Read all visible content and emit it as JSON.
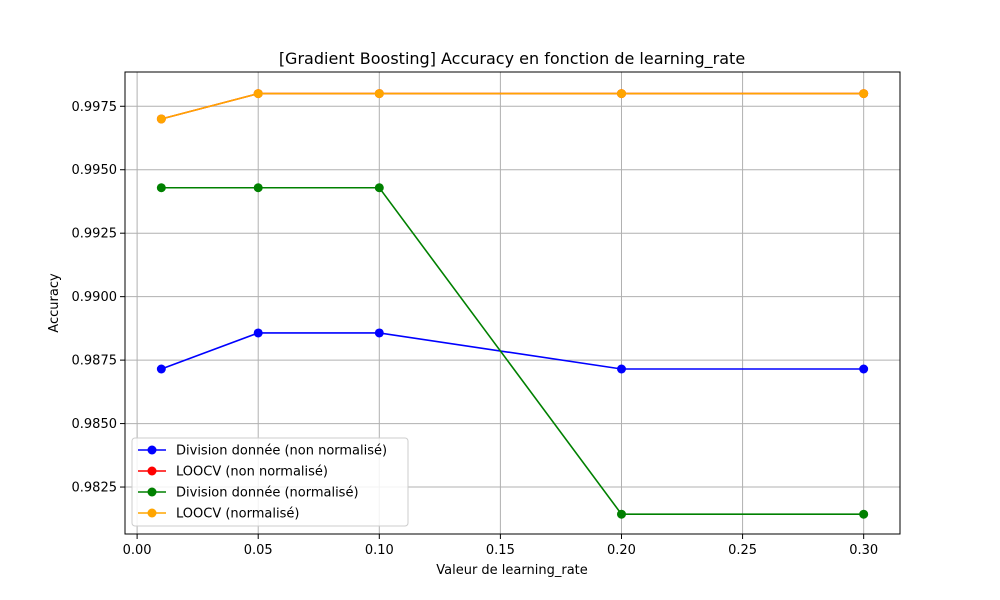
{
  "chart_data": {
    "type": "line",
    "title": "[Gradient Boosting] Accuracy en fonction de learning_rate",
    "xlabel": "Valeur de learning_rate",
    "ylabel": "Accuracy",
    "xlim": [
      -0.005,
      0.315
    ],
    "ylim": [
      0.98065,
      0.99885
    ],
    "xticks": [
      0.0,
      0.05,
      0.1,
      0.15,
      0.2,
      0.25,
      0.3
    ],
    "xtick_labels": [
      "0.00",
      "0.05",
      "0.10",
      "0.15",
      "0.20",
      "0.25",
      "0.30"
    ],
    "yticks": [
      0.9825,
      0.985,
      0.9875,
      0.99,
      0.9925,
      0.995,
      0.9975
    ],
    "ytick_labels": [
      "0.9825",
      "0.9850",
      "0.9875",
      "0.9900",
      "0.9925",
      "0.9950",
      "0.9975"
    ],
    "grid": true,
    "legend_position": "lower-left",
    "x": [
      0.01,
      0.05,
      0.1,
      0.2,
      0.3
    ],
    "series": [
      {
        "name": "Division donnée (non normalisé)",
        "color": "#0000ff",
        "values": [
          0.98715,
          0.98857,
          0.98857,
          0.98715,
          0.98715
        ]
      },
      {
        "name": "LOOCV (non normalisé)",
        "color": "#ff0000",
        "values": [
          0.997,
          0.998,
          0.998,
          0.998,
          0.998
        ]
      },
      {
        "name": "Division donnée (normalisé)",
        "color": "#008000",
        "values": [
          0.99429,
          0.99429,
          0.99429,
          0.98143,
          0.98143
        ]
      },
      {
        "name": "LOOCV (normalisé)",
        "color": "#ffa500",
        "values": [
          0.997,
          0.998,
          0.998,
          0.998,
          0.998
        ]
      }
    ]
  }
}
